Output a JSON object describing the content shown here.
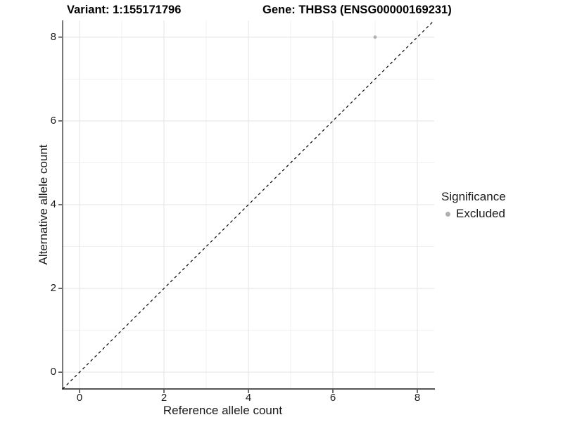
{
  "chart_data": {
    "type": "scatter",
    "title_left": "Variant: 1:155171796",
    "title_right": "Gene: THBS3 (ENSG00000169231)",
    "xlabel": "Reference allele count",
    "ylabel": "Alternative allele count",
    "xlim": [
      -0.4,
      8.4
    ],
    "ylim": [
      -0.4,
      8.4
    ],
    "xticks": [
      0,
      2,
      4,
      6,
      8
    ],
    "yticks": [
      0,
      2,
      4,
      6,
      8
    ],
    "minor_gridlines_x": [
      1,
      3,
      5,
      7
    ],
    "minor_gridlines_y": [
      1,
      3,
      5,
      7
    ],
    "grid": "on",
    "series": [
      {
        "name": "Excluded",
        "color": "#b0b0b0",
        "points": [
          {
            "x": 7,
            "y": 8
          }
        ]
      }
    ],
    "reference_line": {
      "kind": "identity y=x",
      "from": [
        -0.4,
        -0.4
      ],
      "to": [
        8.4,
        8.4
      ],
      "style": "dashed",
      "color": "#000000"
    },
    "legend": {
      "title": "Significance",
      "position": "right",
      "items": [
        {
          "label": "Excluded",
          "marker_color": "#b0b0b0"
        }
      ]
    }
  },
  "colors": {
    "background": "#ffffff",
    "grid_major": "#e3e3e3",
    "grid_minor": "#f0f0f0",
    "axis_line": "#565656",
    "tick_mark": "#333333",
    "point": "#b0b0b0"
  }
}
